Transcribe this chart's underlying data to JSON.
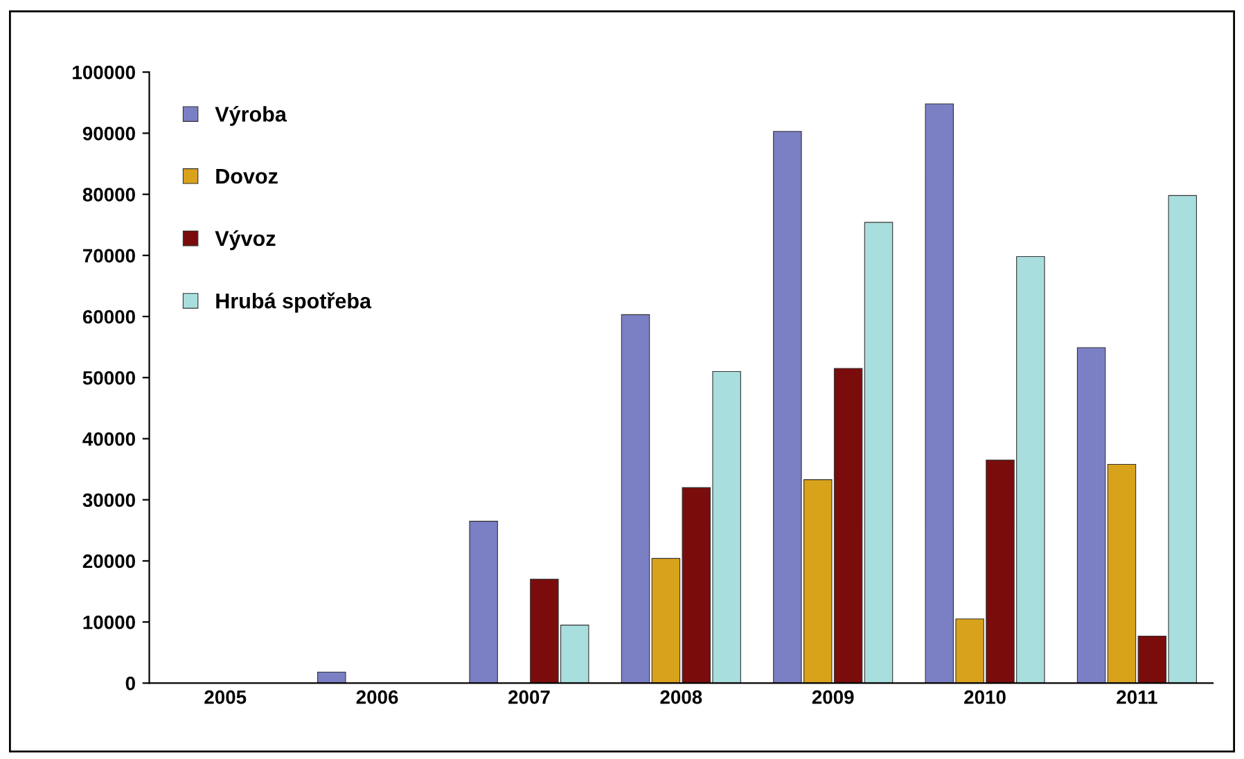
{
  "chart_data": {
    "type": "bar",
    "categories": [
      "2005",
      "2006",
      "2007",
      "2008",
      "2009",
      "2010",
      "2011"
    ],
    "series": [
      {
        "name": "Výroba",
        "color": "#7b7fc4",
        "values": [
          null,
          1800,
          26500,
          60300,
          90300,
          94800,
          54900
        ]
      },
      {
        "name": "Dovoz",
        "color": "#d9a21b",
        "values": [
          null,
          null,
          null,
          20400,
          33300,
          10500,
          35800
        ]
      },
      {
        "name": "Vývoz",
        "color": "#7a0c0c",
        "values": [
          null,
          null,
          17000,
          32000,
          51500,
          36500,
          7700
        ]
      },
      {
        "name": "Hrubá spotřeba",
        "color": "#a9dede",
        "values": [
          null,
          null,
          9500,
          51000,
          75400,
          69800,
          79800
        ]
      }
    ],
    "ylim": [
      0,
      100000
    ],
    "yticks": [
      0,
      10000,
      20000,
      30000,
      40000,
      50000,
      60000,
      70000,
      80000,
      90000,
      100000
    ],
    "legend": "top left",
    "grid": false
  }
}
